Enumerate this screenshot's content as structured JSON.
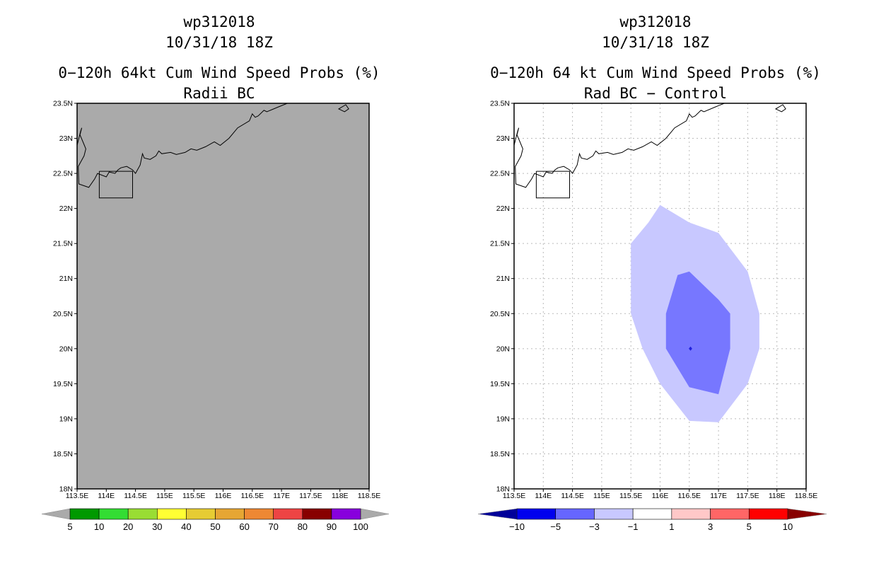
{
  "left": {
    "title_lines": [
      "wp312018",
      "10/31/18 18Z",
      "0−120h 64kt Cum Wind Speed Probs (%)",
      "Radii BC"
    ],
    "background": "#aaaaaa",
    "colorbar": {
      "colors": [
        "#009900",
        "#33dd33",
        "#99dd33",
        "#ffff33",
        "#e6cc33",
        "#e6a633",
        "#ee8833",
        "#ee4444",
        "#880000",
        "#8800dd"
      ],
      "labels": [
        "5",
        "10",
        "20",
        "30",
        "40",
        "50",
        "60",
        "70",
        "80",
        "90",
        "100"
      ],
      "end_colors": [
        "#aaaaaa",
        "#aaaaaa"
      ]
    }
  },
  "right": {
    "title_lines": [
      "wp312018",
      "10/31/18 18Z",
      "0−120h 64 kt Cum Wind Speed Probs (%)",
      "Rad BC − Control"
    ],
    "background": "#ffffff",
    "colorbar": {
      "colors": [
        "#0000ee",
        "#6666ff",
        "#c8c8ff",
        "#ffffff",
        "#ffc8c8",
        "#ff6666",
        "#ff0000"
      ],
      "labels": [
        "−10",
        "−5",
        "−3",
        "−1",
        "1",
        "3",
        "5",
        "10"
      ],
      "end_colors": [
        "#000099",
        "#880000"
      ]
    },
    "contours": [
      {
        "level": "-1 to -3",
        "color": "#c8c8ff",
        "lon": [
          116.0,
          116.5,
          117.0,
          117.5,
          117.7,
          117.7,
          117.5,
          117.0,
          116.5,
          116.0,
          115.7,
          115.5,
          115.5,
          115.8
        ],
        "lat": [
          22.05,
          21.8,
          21.65,
          21.1,
          20.5,
          20.0,
          19.5,
          18.95,
          18.97,
          19.5,
          20.0,
          20.5,
          21.5,
          21.8
        ]
      },
      {
        "level": "-3 to -5",
        "color": "#7777ff",
        "lon": [
          116.5,
          117.0,
          117.2,
          117.2,
          117.0,
          116.5,
          116.1,
          116.1,
          116.3
        ],
        "lat": [
          21.1,
          20.7,
          20.5,
          20.0,
          19.35,
          19.45,
          20.0,
          20.5,
          21.05
        ]
      },
      {
        "level": "-5 to -10",
        "color": "#2222dd",
        "lon": [
          116.49,
          116.52,
          116.55,
          116.52
        ],
        "lat": [
          20.0,
          20.03,
          20.0,
          19.97
        ]
      }
    ]
  },
  "axes": {
    "x_ticks": [
      "113.5E",
      "114E",
      "114.5E",
      "115E",
      "115.5E",
      "116E",
      "116.5E",
      "117E",
      "117.5E",
      "118E",
      "118.5E"
    ],
    "y_ticks": [
      "23.5N",
      "23N",
      "22.5N",
      "22N",
      "21.5N",
      "21N",
      "20.5N",
      "20N",
      "19.5N",
      "19N",
      "18.5N",
      "18N"
    ],
    "lon_range": [
      113.5,
      118.5
    ],
    "lat_range": [
      18.0,
      23.5
    ]
  },
  "coastline": {
    "mainland": {
      "lon": [
        113.5,
        113.56,
        113.58,
        113.55,
        113.6,
        113.65,
        113.62,
        113.52,
        113.53,
        113.7,
        113.8,
        113.85,
        114.0,
        114.05,
        114.15,
        114.2,
        114.25,
        114.35,
        114.45,
        114.5,
        114.58,
        114.62,
        114.65,
        114.75,
        114.85,
        114.9,
        114.95,
        115.1,
        115.2,
        115.35,
        115.45,
        115.55,
        115.7,
        115.85,
        115.95,
        116.1,
        116.25,
        116.45,
        116.5,
        116.55,
        116.6,
        116.7,
        116.75,
        116.95,
        117.1
      ],
      "lat": [
        22.9,
        23.1,
        23.15,
        23.05,
        22.95,
        22.85,
        22.75,
        22.6,
        22.35,
        22.3,
        22.42,
        22.5,
        22.45,
        22.52,
        22.5,
        22.55,
        22.58,
        22.6,
        22.55,
        22.5,
        22.62,
        22.78,
        22.72,
        22.7,
        22.75,
        22.82,
        22.78,
        22.8,
        22.77,
        22.8,
        22.85,
        22.83,
        22.88,
        22.95,
        22.9,
        23.0,
        23.15,
        23.25,
        23.35,
        23.3,
        23.32,
        23.4,
        23.38,
        23.45,
        23.5
      ]
    },
    "island": {
      "lon": [
        118.0,
        118.1,
        118.15,
        118.08,
        117.98,
        118.0
      ],
      "lat": [
        23.43,
        23.48,
        23.42,
        23.38,
        23.42,
        23.43
      ]
    },
    "hk_box": {
      "lon": [
        113.88,
        114.45,
        114.45,
        113.88,
        113.88
      ],
      "lat": [
        22.53,
        22.53,
        22.15,
        22.15,
        22.53
      ]
    }
  }
}
